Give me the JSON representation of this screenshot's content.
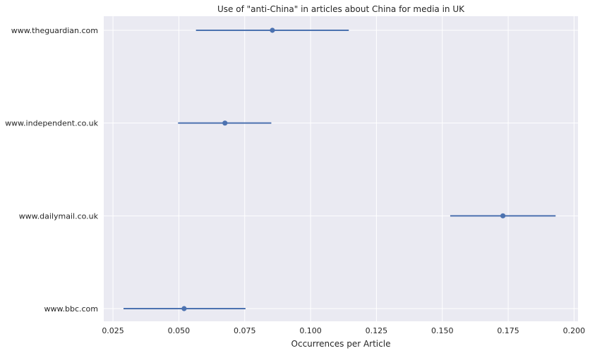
{
  "chart_data": {
    "type": "scatter",
    "title": "Use of \"anti-China\" in articles about China for media in UK",
    "xlabel": "Occurrences per Article",
    "ylabel": "",
    "xlim": [
      0.0215,
      0.2015
    ],
    "xticks": [
      0.025,
      0.05,
      0.075,
      0.1,
      0.125,
      0.15,
      0.175,
      0.2
    ],
    "xtick_labels": [
      "0.025",
      "0.050",
      "0.075",
      "0.100",
      "0.125",
      "0.150",
      "0.175",
      "0.200"
    ],
    "grid": true,
    "categories": [
      "www.theguardian.com",
      "www.independent.co.uk",
      "www.dailymail.co.uk",
      "www.bbc.com"
    ],
    "points": [
      {
        "label": "www.theguardian.com",
        "value": 0.0855,
        "ci_low": 0.0565,
        "ci_high": 0.1145
      },
      {
        "label": "www.independent.co.uk",
        "value": 0.0675,
        "ci_low": 0.0497,
        "ci_high": 0.0851
      },
      {
        "label": "www.dailymail.co.uk",
        "value": 0.173,
        "ci_low": 0.153,
        "ci_high": 0.193
      },
      {
        "label": "www.bbc.com",
        "value": 0.052,
        "ci_low": 0.029,
        "ci_high": 0.0753
      }
    ],
    "colors": {
      "background": "#eaeaf2",
      "grid": "#ffffff",
      "marker": "#4c72b0"
    }
  }
}
